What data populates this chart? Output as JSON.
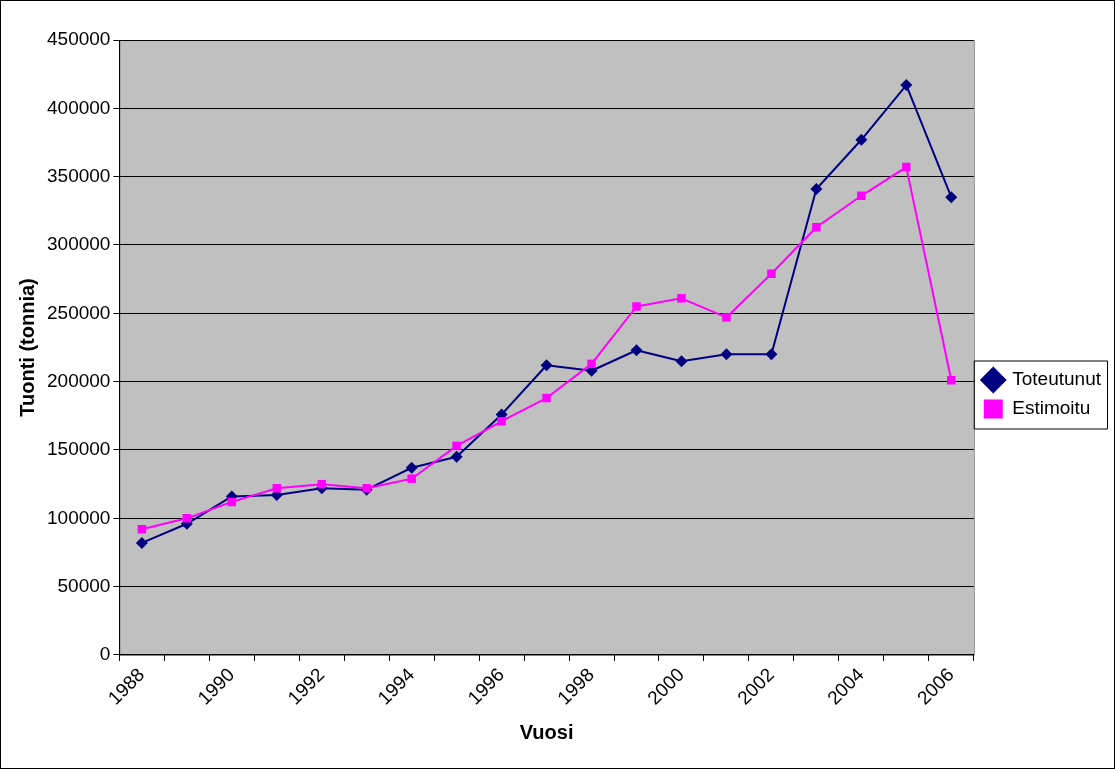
{
  "chart_data": {
    "type": "line",
    "xlabel": "Vuosi",
    "ylabel": "Tuonti (tonnia)",
    "categories": [
      "1988",
      null,
      "1990",
      null,
      "1992",
      null,
      "1994",
      null,
      "1996",
      null,
      "1998",
      null,
      "2000",
      null,
      "2002",
      null,
      "2004",
      null,
      "2006"
    ],
    "series": [
      {
        "name": "Toteutunut",
        "color": "#000080",
        "marker": "diamond",
        "values": [
          82000,
          96000,
          116000,
          117000,
          122000,
          121000,
          137000,
          145000,
          176000,
          212000,
          208000,
          223000,
          215000,
          220000,
          220000,
          341000,
          377000,
          417000,
          335000
        ]
      },
      {
        "name": "Estimoitu",
        "color": "#ff00ff",
        "marker": "square",
        "values": [
          92000,
          100000,
          112000,
          122000,
          125000,
          122000,
          129000,
          153000,
          171000,
          188000,
          213000,
          255000,
          261000,
          247000,
          279000,
          313000,
          336000,
          357000,
          201000
        ]
      }
    ],
    "ylim": [
      0,
      450000
    ],
    "yticks": [
      0,
      50000,
      100000,
      150000,
      200000,
      250000,
      300000,
      350000,
      400000,
      450000
    ],
    "grid": "y",
    "legend": "right",
    "line_style": "solid"
  }
}
